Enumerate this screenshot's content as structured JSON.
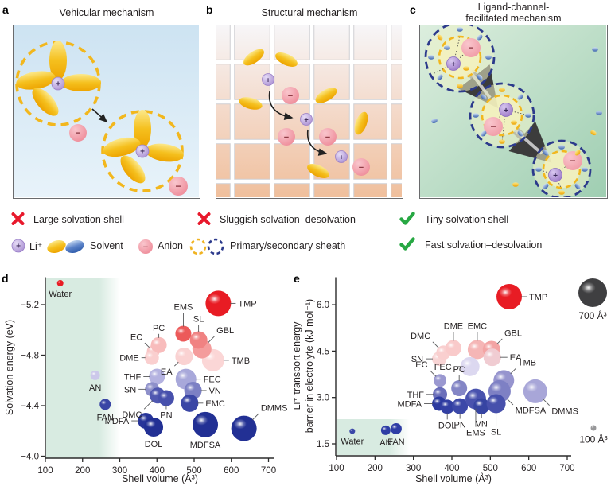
{
  "sym": {
    "plus": "+",
    "minus": "−"
  },
  "panels": {
    "a": {
      "letter": "a",
      "title": "Vehicular mechanism"
    },
    "b": {
      "letter": "b",
      "title": "Structural mechanism"
    },
    "c": {
      "letter": "c",
      "title_line1": "Ligand-channel-",
      "title_line2": "facilitated mechanism"
    },
    "d": {
      "letter": "d"
    },
    "e": {
      "letter": "e"
    }
  },
  "legend": {
    "negative1": "Large solvation shell",
    "negative2": "Sluggish solvation–desolvation",
    "positive1": "Tiny solvation shell",
    "positive2": "Fast solvation–desolvation",
    "li": "Li⁺",
    "solvent": "Solvent",
    "anion": "Anion",
    "sheath": "Primary/secondary sheath"
  },
  "colors": {
    "red_cross": "#e8192c",
    "green_check": "#27a843",
    "gold": "#f2b71d",
    "navy_dash": "#2c3a8c",
    "li_purple": "#b49ada",
    "anion_pink": "#f0939f",
    "green_band": "#d8ebe1",
    "axis": "#2b2b2b"
  },
  "chart_data": [
    {
      "id": "d",
      "type": "scatter",
      "xlabel": "Shell volume (Å³)",
      "ylabel_lines": [
        "Solvation energy (eV)"
      ],
      "x_ticks": [
        {
          "v": 100,
          "t": "100"
        },
        {
          "v": 200,
          "t": "200"
        },
        {
          "v": 300,
          "t": "300"
        },
        {
          "v": 400,
          "t": "400"
        },
        {
          "v": 500,
          "t": "500"
        },
        {
          "v": 600,
          "t": "600"
        },
        {
          "v": 700,
          "t": "700"
        }
      ],
      "y_ticks": [
        {
          "v": -5.2,
          "t": "−5.2"
        },
        {
          "v": -4.8,
          "t": "−4.8"
        },
        {
          "v": -4.4,
          "t": "−4.4"
        },
        {
          "v": -4.0,
          "t": "−4.0"
        }
      ],
      "xlim": [
        100,
        700
      ],
      "ylim": [
        -5.45,
        -4.0
      ],
      "y_inverted": true,
      "green_region": {
        "x_min": 100,
        "x_max": 300,
        "full_height": true
      },
      "points": [
        {
          "name": "EC",
          "x": 390,
          "y": -4.83,
          "r": 8,
          "color": "#f9c6c6",
          "lp": "tl",
          "g": 5,
          "leader": true
        },
        {
          "name": "PC",
          "x": 405,
          "y": -4.88,
          "r": 10,
          "color": "#f8bcbc",
          "lp": "t",
          "g": 2,
          "leader": true
        },
        {
          "name": "DME",
          "x": 386,
          "y": -4.78,
          "r": 9,
          "color": "#facfcf",
          "lp": "l",
          "g": 2,
          "leader": true
        },
        {
          "name": "EA",
          "x": 473,
          "y": -4.79,
          "r": 11,
          "color": "#fad2d2",
          "lp": "bl",
          "g": 4,
          "leader": true
        },
        {
          "name": "TMB",
          "x": 551,
          "y": -4.76,
          "r": 14,
          "color": "#fbd6d6",
          "lp": "r",
          "g": 4,
          "leader": true
        },
        {
          "name": "GBL",
          "x": 521,
          "y": -4.85,
          "r": 12,
          "color": "#f49c9c",
          "lp": "tr",
          "g": 8,
          "leader": true
        },
        {
          "name": "SL",
          "x": 512,
          "y": -4.92,
          "r": 11,
          "color": "#f08282",
          "lp": "t",
          "g": 6,
          "leader": true
        },
        {
          "name": "EMS",
          "x": 471,
          "y": -4.97,
          "r": 10,
          "color": "#ec5a5a",
          "lp": "t",
          "g": 14,
          "leader": true
        },
        {
          "name": "TMP",
          "x": 565,
          "y": -5.21,
          "r": 16,
          "color": "#e81c24",
          "lp": "r",
          "g": 4,
          "leader": true
        },
        {
          "name": "Water",
          "x": 140,
          "y": -5.37,
          "r": 4,
          "color": "#e81c24",
          "lp": "b",
          "leader": false
        },
        {
          "name": "AN",
          "x": 234,
          "y": -4.64,
          "r": 6,
          "color": "#ccc8ea",
          "lp": "b",
          "leader": false
        },
        {
          "name": "THF",
          "x": 400,
          "y": -4.63,
          "r": 10,
          "color": "#b4b2e0",
          "lp": "l",
          "g": 5,
          "leader": true
        },
        {
          "name": "FEC",
          "x": 478,
          "y": -4.61,
          "r": 13,
          "color": "#a8a8da",
          "lp": "r",
          "g": 4,
          "leader": true
        },
        {
          "name": "SN",
          "x": 387,
          "y": -4.53,
          "r": 9,
          "color": "#8e90ca",
          "lp": "l",
          "g": 6,
          "leader": true
        },
        {
          "name": "VN",
          "x": 497,
          "y": -4.52,
          "r": 11,
          "color": "#7c80c4",
          "lp": "r",
          "g": 4,
          "leader": true
        },
        {
          "name": "DMC",
          "x": 402,
          "y": -4.48,
          "r": 10,
          "color": "#5058b0",
          "lp": "bl",
          "g": 12,
          "leader": true
        },
        {
          "name": "PN",
          "x": 425,
          "y": -4.46,
          "r": 10,
          "color": "#4750ac",
          "lp": "b",
          "g": 2,
          "leader": true
        },
        {
          "name": "EMC",
          "x": 488,
          "y": -4.42,
          "r": 11,
          "color": "#3a46a5",
          "lp": "r",
          "g": 4,
          "leader": true
        },
        {
          "name": "FAN",
          "x": 261,
          "y": -4.41,
          "r": 7,
          "color": "#3a46a5",
          "lp": "b",
          "leader": false
        },
        {
          "name": "MDFA",
          "x": 370,
          "y": -4.28,
          "r": 10,
          "color": "#273499",
          "lp": "l",
          "g": 6,
          "leader": true
        },
        {
          "name": "DOL",
          "x": 391,
          "y": -4.23,
          "r": 12,
          "color": "#223094",
          "lp": "b",
          "leader": false
        },
        {
          "name": "MDFSA",
          "x": 530,
          "y": -4.25,
          "r": 16,
          "color": "#223094",
          "lp": "b",
          "leader": false
        },
        {
          "name": "DMMS",
          "x": 634,
          "y": -4.22,
          "r": 16,
          "color": "#223094",
          "lp": "tr",
          "g": 8,
          "leader": true
        }
      ]
    },
    {
      "id": "e",
      "type": "scatter",
      "xlabel": "Shell volume (Å³)",
      "ylabel_lines": [
        "Li⁺ transport energy",
        "barrier in electrolyte (kJ mol⁻¹)"
      ],
      "x_ticks": [
        {
          "v": 100,
          "t": "100"
        },
        {
          "v": 200,
          "t": "200"
        },
        {
          "v": 300,
          "t": "300"
        },
        {
          "v": 400,
          "t": "400"
        },
        {
          "v": 500,
          "t": "500"
        },
        {
          "v": 600,
          "t": "600"
        },
        {
          "v": 700,
          "t": "700"
        }
      ],
      "y_ticks": [
        {
          "v": 1.5,
          "t": "1.5"
        },
        {
          "v": 3.0,
          "t": "3.0"
        },
        {
          "v": 4.5,
          "t": "4.5"
        },
        {
          "v": 6.0,
          "t": "6.0"
        }
      ],
      "xlim": [
        100,
        700
      ],
      "ylim": [
        1.1,
        6.7
      ],
      "y_inverted": false,
      "green_region": {
        "x_min": 100,
        "x_max": 290,
        "y_min": 1.2,
        "y_max": 2.3
      },
      "size_legend": [
        {
          "label": "700 Å³",
          "r": 18,
          "color": "#3f3f41"
        },
        {
          "label": "100 Å³",
          "r": 3.5,
          "color": "#98989a"
        }
      ],
      "points": [
        {
          "name": "SN",
          "x": 367,
          "y": 4.25,
          "r": 9,
          "color": "#f8d4d4",
          "lp": "l",
          "g": 6,
          "leader": true
        },
        {
          "name": "DMC",
          "x": 378,
          "y": 4.45,
          "r": 9,
          "color": "#f9cfcf",
          "lp": "tl",
          "g": 8,
          "leader": true
        },
        {
          "name": "DME",
          "x": 404,
          "y": 4.6,
          "r": 10,
          "color": "#f9caca",
          "lp": "t",
          "g": 8,
          "leader": true
        },
        {
          "name": "EMC",
          "x": 466,
          "y": 4.55,
          "r": 12,
          "color": "#f5b6b6",
          "lp": "t",
          "g": 8,
          "leader": true
        },
        {
          "name": "GBL",
          "x": 503,
          "y": 4.55,
          "r": 11,
          "color": "#f3a4a4",
          "lp": "tr",
          "g": 6,
          "leader": true
        },
        {
          "name": "EA",
          "x": 505,
          "y": 4.3,
          "r": 11,
          "color": "#f0ccd2",
          "lp": "r",
          "g": 6,
          "leader": true
        },
        {
          "name": "FEC",
          "x": 447,
          "y": 4.0,
          "r": 12,
          "color": "#dcd8f0",
          "lp": "l",
          "g": 6,
          "leader": true
        },
        {
          "name": "EC",
          "x": 369,
          "y": 3.55,
          "r": 8,
          "color": "#9a98d0",
          "lp": "tl",
          "g": 8,
          "leader": true
        },
        {
          "name": "PC",
          "x": 419,
          "y": 3.3,
          "r": 10,
          "color": "#8486c6",
          "lp": "t",
          "g": 4,
          "leader": true
        },
        {
          "name": "THF",
          "x": 369,
          "y": 3.1,
          "r": 9,
          "color": "#6a6eba",
          "lp": "l",
          "g": 6,
          "leader": true
        },
        {
          "name": "TMB",
          "x": 535,
          "y": 3.55,
          "r": 13,
          "color": "#9694ce",
          "lp": "tr",
          "g": 6,
          "leader": true
        },
        {
          "name": "DMMS",
          "x": 617,
          "y": 3.2,
          "r": 15,
          "color": "#a8a6d8",
          "lp": "br",
          "g": 8,
          "leader": true
        },
        {
          "name": "MDFSA",
          "x": 524,
          "y": 3.2,
          "r": 14,
          "color": "#7e80c4",
          "lp": "br",
          "g": 8,
          "leader": true
        },
        {
          "name": "MDFA",
          "x": 367,
          "y": 2.8,
          "r": 9,
          "color": "#2c3a9f",
          "lp": "l",
          "g": 8,
          "leader": true
        },
        {
          "name": "DOL",
          "x": 388,
          "y": 2.7,
          "r": 9,
          "color": "#323fa3",
          "lp": "b",
          "g": 5,
          "leader": true
        },
        {
          "name": "PN",
          "x": 421,
          "y": 2.72,
          "r": 10,
          "color": "#3c48a8",
          "lp": "b",
          "g": 4,
          "leader": true
        },
        {
          "name": "EMS",
          "x": 462,
          "y": 2.95,
          "r": 13,
          "color": "#4952ae",
          "lp": "b",
          "g": 20,
          "leader": true
        },
        {
          "name": "VN",
          "x": 477,
          "y": 2.72,
          "r": 10,
          "color": "#3644a2",
          "lp": "b",
          "g": 3,
          "leader": true
        },
        {
          "name": "SL",
          "x": 515,
          "y": 2.8,
          "r": 12,
          "color": "#4750ac",
          "lp": "b",
          "g": 14,
          "leader": true
        },
        {
          "name": "TMP",
          "x": 549,
          "y": 6.26,
          "r": 16,
          "color": "#e81c24",
          "lp": "r",
          "g": 4,
          "leader": true
        },
        {
          "name": "Water",
          "x": 141,
          "y": 1.91,
          "r": 3.5,
          "color": "#3a46a8",
          "lp": "b",
          "leader": false
        },
        {
          "name": "AN",
          "x": 228,
          "y": 1.94,
          "r": 6,
          "color": "#2e3da5",
          "lp": "b",
          "leader": false
        },
        {
          "name": "FAN",
          "x": 255,
          "y": 1.99,
          "r": 7,
          "color": "#2e3da5",
          "lp": "b",
          "leader": false
        }
      ]
    }
  ]
}
